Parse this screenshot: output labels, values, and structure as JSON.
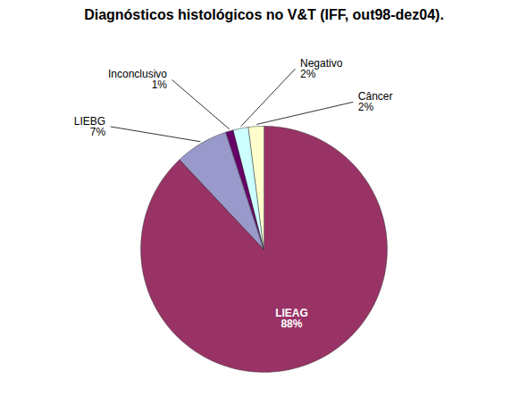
{
  "chart_data": {
    "type": "pie",
    "title": "Diagnósticos histológicos no V&T (IFF, out98-dez04).",
    "categories": [
      "LIEAG",
      "LIEBG",
      "Inconclusivo",
      "Negativo",
      "Câncer"
    ],
    "values": [
      88,
      7,
      1,
      2,
      2
    ],
    "value_labels": [
      "88%",
      "7%",
      "1%",
      "2%",
      "2%"
    ],
    "colors": [
      "#993366",
      "#9999CC",
      "#660066",
      "#CCFFFF",
      "#FFFFCC"
    ],
    "data_labels": true
  }
}
